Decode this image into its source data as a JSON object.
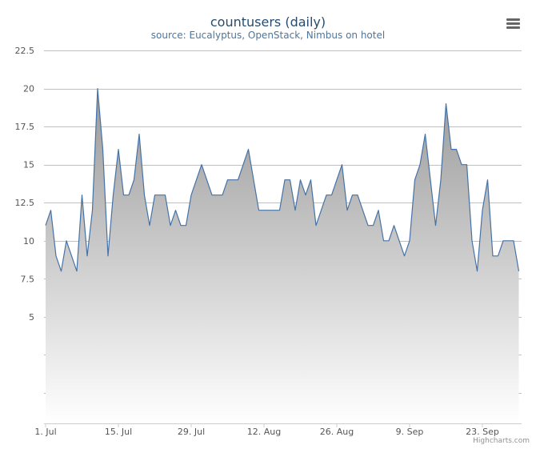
{
  "chart_data": {
    "type": "area",
    "title": "countusers (daily)",
    "subtitle": "source: Eucalyptus, OpenStack, Nimbus on hotel",
    "xlabel": "",
    "ylabel": "",
    "x_start": "2014-07-01",
    "x_interval": "1 day",
    "x_tick_labels": [
      "1. Jul",
      "15. Jul",
      "29. Jul",
      "12. Aug",
      "26. Aug",
      "9. Sep",
      "23. Sep"
    ],
    "y_tick_values": [
      5,
      7.5,
      10,
      12.5,
      15,
      17.5,
      20,
      22.5
    ],
    "y_tick_labels": [
      "5",
      "7.5",
      "10",
      "12.5",
      "15",
      "17.5",
      "20",
      "22.5"
    ],
    "ylim": [
      -2,
      22.5
    ],
    "grid": true,
    "legend": false,
    "series": [
      {
        "values": [
          11,
          12,
          9,
          8,
          10,
          9,
          8,
          13,
          9,
          12,
          20,
          16,
          9,
          13,
          16,
          13,
          13,
          14,
          17,
          13,
          11,
          13,
          13,
          13,
          11,
          12,
          11,
          11,
          13,
          14,
          15,
          14,
          13,
          13,
          13,
          14,
          14,
          14,
          15,
          16,
          14,
          12,
          12,
          12,
          12,
          12,
          14,
          14,
          12,
          14,
          13,
          14,
          11,
          12,
          13,
          13,
          14,
          15,
          12,
          13,
          13,
          12,
          11,
          11,
          12,
          10,
          10,
          11,
          10,
          9,
          10,
          14,
          15,
          17,
          14,
          11,
          14,
          19,
          16,
          16,
          15,
          15,
          10,
          8,
          12,
          14,
          9,
          9,
          10,
          10,
          10,
          8
        ]
      }
    ],
    "colors": {
      "line": "#4572a7",
      "area_top": "#999999",
      "area_bottom": "#ffffff",
      "grid": "#c0c0c0",
      "axis": "#c0d0e0"
    }
  },
  "credits": "Highcharts.com",
  "menu_icon": "hamburger-menu-icon"
}
